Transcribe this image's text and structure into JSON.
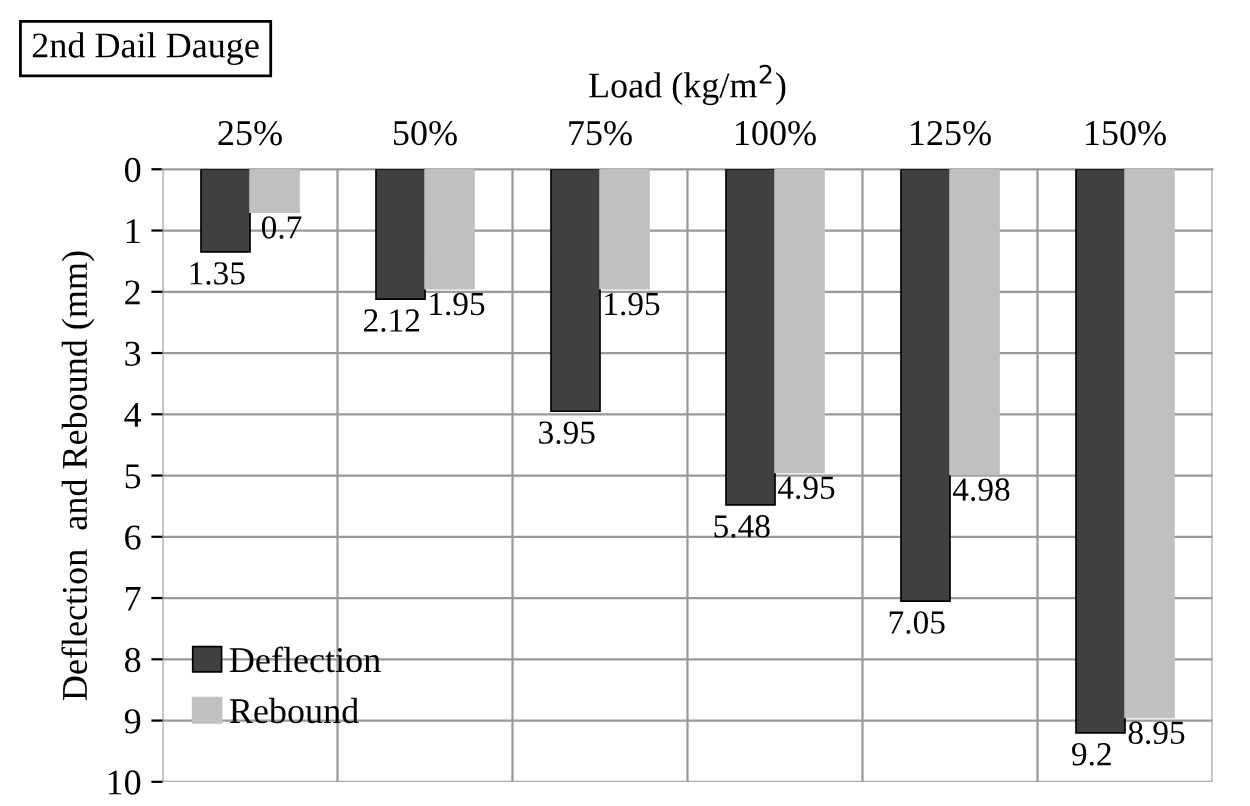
{
  "chart_data": {
    "type": "bar",
    "title": "2nd Dail Dauge",
    "xlabel": "Load (kg/m$^{2}$)",
    "ylabel": "Deflection  and Rebound (mm)",
    "categories": [
      "25%",
      "50%",
      "75%",
      "100%",
      "125%",
      "150%"
    ],
    "series": [
      {
        "name": "Deflection",
        "color": "#404040",
        "values": [
          1.35,
          2.12,
          3.95,
          5.48,
          7.05,
          9.2
        ]
      },
      {
        "name": "Rebound",
        "color": "#c0c0c0",
        "values": [
          0.7,
          1.95,
          1.95,
          4.95,
          4.98,
          8.95
        ]
      }
    ],
    "ylim": [
      10,
      0
    ],
    "yticks": [
      0,
      1,
      2,
      3,
      4,
      5,
      6,
      7,
      8,
      9,
      10
    ],
    "grid": true,
    "legend": "bottom left",
    "data_labels": true
  }
}
